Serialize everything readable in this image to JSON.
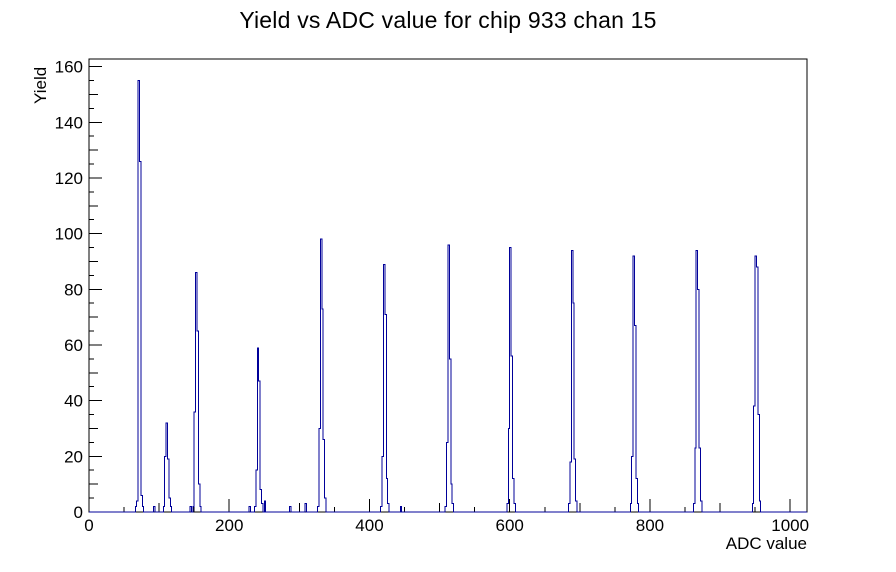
{
  "page": {
    "background": "#ffffff"
  },
  "chart_data": {
    "type": "bar",
    "subtype": "step-histogram",
    "title": "Yield vs ADC value for chip 933 chan 15",
    "xlabel": "ADC value",
    "ylabel": "Yield",
    "xlim": [
      0,
      1024
    ],
    "ylim": [
      0,
      162.75
    ],
    "grid": false,
    "legend": false,
    "x_major_ticks": [
      0,
      200,
      400,
      600,
      800,
      1000
    ],
    "x_medium_tick_step": 100,
    "x_minor_tick_step": 50,
    "y_major_ticks": [
      0,
      20,
      40,
      60,
      80,
      100,
      120,
      140,
      160
    ],
    "y_medium_tick_step": 10,
    "y_minor_tick_step": 5,
    "bin_width": 2,
    "line_color": "#000099",
    "axis_color": "#000000",
    "peak_summary": [
      {
        "adc": 70,
        "yield": 155
      },
      {
        "adc": 110,
        "yield": 32
      },
      {
        "adc": 152,
        "yield": 86
      },
      {
        "adc": 240,
        "yield": 59
      },
      {
        "adc": 330,
        "yield": 98
      },
      {
        "adc": 420,
        "yield": 89
      },
      {
        "adc": 512,
        "yield": 96
      },
      {
        "adc": 600,
        "yield": 95
      },
      {
        "adc": 688,
        "yield": 94
      },
      {
        "adc": 776,
        "yield": 92
      },
      {
        "adc": 866,
        "yield": 94
      },
      {
        "adc": 950,
        "yield": 92
      }
    ],
    "bins": [
      [
        66,
        2
      ],
      [
        68,
        4
      ],
      [
        70,
        155
      ],
      [
        72,
        126
      ],
      [
        74,
        6
      ],
      [
        76,
        2
      ],
      [
        92,
        2
      ],
      [
        106,
        2
      ],
      [
        108,
        20
      ],
      [
        110,
        32
      ],
      [
        112,
        19
      ],
      [
        114,
        5
      ],
      [
        116,
        2
      ],
      [
        144,
        2
      ],
      [
        148,
        2
      ],
      [
        150,
        36
      ],
      [
        152,
        86
      ],
      [
        154,
        65
      ],
      [
        156,
        10
      ],
      [
        158,
        2
      ],
      [
        228,
        2
      ],
      [
        236,
        2
      ],
      [
        238,
        15
      ],
      [
        240,
        59
      ],
      [
        242,
        47
      ],
      [
        244,
        8
      ],
      [
        246,
        3
      ],
      [
        250,
        4
      ],
      [
        286,
        2
      ],
      [
        308,
        3
      ],
      [
        326,
        2
      ],
      [
        328,
        30
      ],
      [
        330,
        98
      ],
      [
        332,
        73
      ],
      [
        334,
        26
      ],
      [
        336,
        5
      ],
      [
        416,
        2
      ],
      [
        418,
        20
      ],
      [
        420,
        89
      ],
      [
        422,
        71
      ],
      [
        424,
        12
      ],
      [
        426,
        3
      ],
      [
        444,
        2
      ],
      [
        508,
        2
      ],
      [
        510,
        25
      ],
      [
        512,
        96
      ],
      [
        514,
        55
      ],
      [
        516,
        10
      ],
      [
        518,
        3
      ],
      [
        596,
        3
      ],
      [
        598,
        30
      ],
      [
        600,
        95
      ],
      [
        602,
        56
      ],
      [
        604,
        12
      ],
      [
        606,
        3
      ],
      [
        684,
        3
      ],
      [
        686,
        18
      ],
      [
        688,
        94
      ],
      [
        690,
        75
      ],
      [
        692,
        19
      ],
      [
        694,
        4
      ],
      [
        772,
        3
      ],
      [
        774,
        20
      ],
      [
        776,
        92
      ],
      [
        778,
        67
      ],
      [
        780,
        12
      ],
      [
        782,
        3
      ],
      [
        862,
        3
      ],
      [
        864,
        23
      ],
      [
        866,
        94
      ],
      [
        868,
        80
      ],
      [
        870,
        23
      ],
      [
        872,
        4
      ],
      [
        946,
        3
      ],
      [
        948,
        38
      ],
      [
        950,
        92
      ],
      [
        952,
        88
      ],
      [
        954,
        35
      ],
      [
        956,
        4
      ]
    ]
  }
}
